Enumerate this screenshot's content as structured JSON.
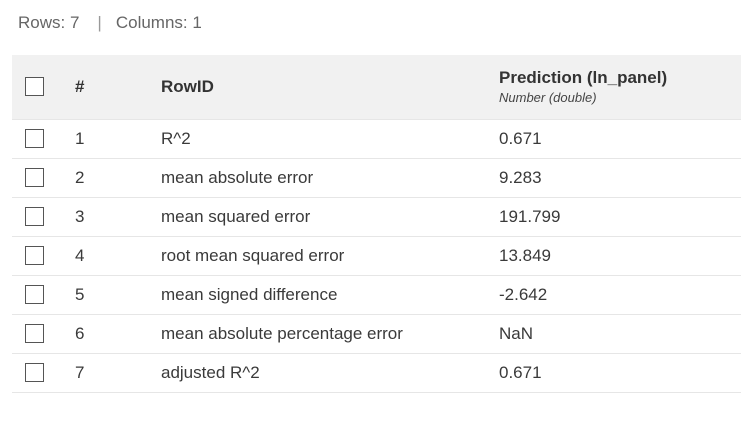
{
  "stats": {
    "rows_label": "Rows: 7",
    "separator": "|",
    "columns_label": "Columns: 1"
  },
  "table": {
    "header": {
      "index": "#",
      "rowid": "RowID",
      "prediction_title": "Prediction (ln_panel)",
      "prediction_type": "Number (double)"
    },
    "rows": [
      {
        "index": "1",
        "rowid": "R^2",
        "value": "0.671"
      },
      {
        "index": "2",
        "rowid": "mean absolute error",
        "value": "9.283"
      },
      {
        "index": "3",
        "rowid": "mean squared error",
        "value": "191.799"
      },
      {
        "index": "4",
        "rowid": "root mean squared error",
        "value": "13.849"
      },
      {
        "index": "5",
        "rowid": "mean signed difference",
        "value": "-2.642"
      },
      {
        "index": "6",
        "rowid": "mean absolute percentage error",
        "value": "NaN"
      },
      {
        "index": "7",
        "rowid": "adjusted R^2",
        "value": "0.671"
      }
    ]
  }
}
